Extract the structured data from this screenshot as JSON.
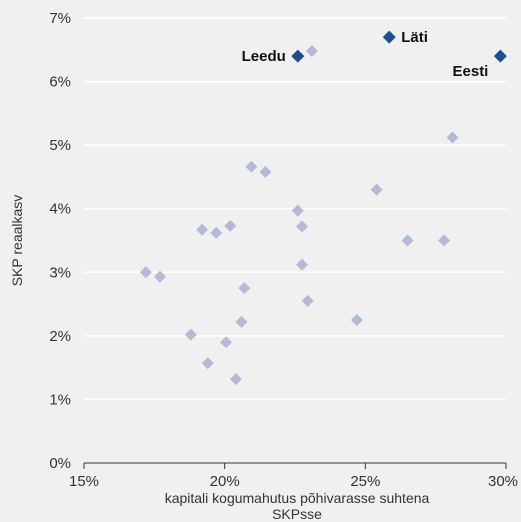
{
  "chart_data": {
    "type": "scatter",
    "xlabel": "kapitali kogumahutus põhivarasse suhtena SKPsse",
    "ylabel": "SKP reaalkasv",
    "xlim": [
      15,
      30
    ],
    "ylim": [
      0,
      7
    ],
    "x_ticks": [
      "15%",
      "20%",
      "25%",
      "30%"
    ],
    "y_ticks": [
      "0%",
      "1%",
      "2%",
      "3%",
      "4%",
      "5%",
      "6%",
      "7%"
    ],
    "grid": "horizontal",
    "marker": "diamond",
    "colors": {
      "background": "#f0f0f0",
      "others": "#b4b9d6",
      "highlighted": "#1f4e8c",
      "grid": "#ffffff",
      "axis": "#333333"
    },
    "series": [
      {
        "values": [
          {
            "x": 17.2,
            "y": 3.0
          },
          {
            "x": 17.7,
            "y": 2.93
          },
          {
            "x": 18.8,
            "y": 2.02
          },
          {
            "x": 19.2,
            "y": 3.67
          },
          {
            "x": 19.4,
            "y": 1.57
          },
          {
            "x": 19.7,
            "y": 3.62
          },
          {
            "x": 20.05,
            "y": 1.9
          },
          {
            "x": 20.2,
            "y": 3.73
          },
          {
            "x": 20.4,
            "y": 1.32
          },
          {
            "x": 20.6,
            "y": 2.22
          },
          {
            "x": 20.7,
            "y": 2.75
          },
          {
            "x": 20.95,
            "y": 4.66
          },
          {
            "x": 21.45,
            "y": 4.58
          },
          {
            "x": 22.6,
            "y": 3.97
          },
          {
            "x": 22.75,
            "y": 3.72
          },
          {
            "x": 22.75,
            "y": 3.12
          },
          {
            "x": 22.95,
            "y": 2.55
          },
          {
            "x": 23.1,
            "y": 6.48
          },
          {
            "x": 24.7,
            "y": 2.25
          },
          {
            "x": 25.4,
            "y": 4.3
          },
          {
            "x": 26.5,
            "y": 3.5
          },
          {
            "x": 27.8,
            "y": 3.5
          },
          {
            "x": 28.1,
            "y": 5.12
          }
        ]
      },
      {
        "values": [
          {
            "x": 22.6,
            "y": 6.4,
            "label": "Leedu",
            "label_side": "left"
          },
          {
            "x": 25.85,
            "y": 6.7,
            "label": "Läti",
            "label_side": "right"
          },
          {
            "x": 29.8,
            "y": 6.4,
            "label": "Eesti",
            "label_side": "left-below"
          }
        ]
      }
    ]
  }
}
